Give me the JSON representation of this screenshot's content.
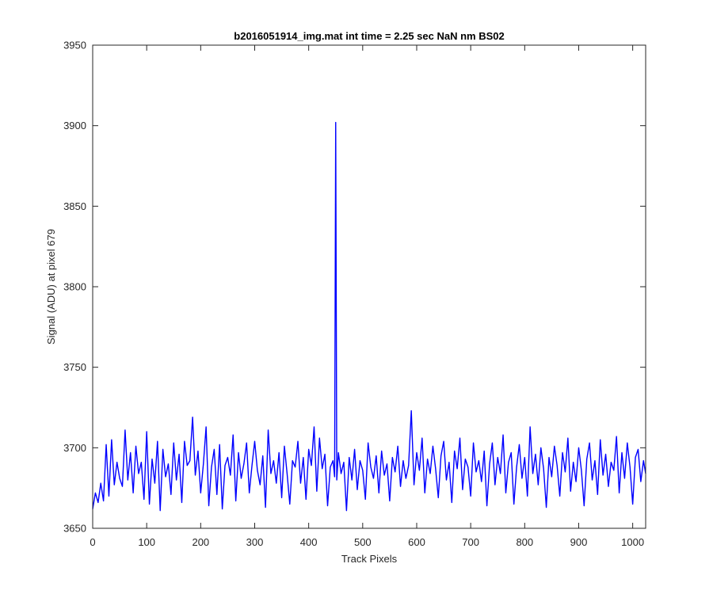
{
  "chart_data": {
    "type": "line",
    "title": "b2016051914_img.mat int time = 2.25 sec  NaN nm BS02",
    "xlabel": "Track Pixels",
    "ylabel": "Signal (ADU) at pixel 679",
    "xlim": [
      0,
      1024
    ],
    "ylim": [
      3650,
      3950
    ],
    "xticks": [
      0,
      100,
      200,
      300,
      400,
      500,
      600,
      700,
      800,
      900,
      1000
    ],
    "yticks": [
      3650,
      3700,
      3750,
      3800,
      3850,
      3900,
      3950
    ],
    "grid": false,
    "legend": "none",
    "series": [
      {
        "color": "#0000ff",
        "x": [
          0,
          5,
          10,
          15,
          20,
          25,
          30,
          35,
          40,
          45,
          50,
          55,
          60,
          65,
          70,
          75,
          80,
          85,
          90,
          95,
          100,
          105,
          110,
          115,
          120,
          125,
          130,
          135,
          140,
          145,
          150,
          155,
          160,
          165,
          170,
          175,
          180,
          185,
          190,
          195,
          200,
          205,
          210,
          215,
          220,
          225,
          230,
          235,
          240,
          245,
          250,
          255,
          260,
          265,
          270,
          275,
          280,
          285,
          290,
          295,
          300,
          305,
          310,
          315,
          320,
          325,
          330,
          335,
          340,
          345,
          350,
          355,
          360,
          365,
          370,
          375,
          380,
          385,
          390,
          395,
          400,
          405,
          410,
          415,
          420,
          425,
          430,
          435,
          440,
          445,
          448,
          450,
          452,
          455,
          460,
          465,
          470,
          475,
          480,
          485,
          490,
          495,
          500,
          505,
          510,
          515,
          520,
          525,
          530,
          535,
          540,
          545,
          550,
          555,
          560,
          565,
          570,
          575,
          580,
          585,
          590,
          595,
          600,
          605,
          610,
          615,
          620,
          625,
          630,
          635,
          640,
          645,
          650,
          655,
          660,
          665,
          670,
          675,
          680,
          685,
          690,
          695,
          700,
          705,
          710,
          715,
          720,
          725,
          730,
          735,
          740,
          745,
          750,
          755,
          760,
          765,
          770,
          775,
          780,
          785,
          790,
          795,
          800,
          805,
          810,
          815,
          820,
          825,
          830,
          835,
          840,
          845,
          850,
          855,
          860,
          865,
          870,
          875,
          880,
          885,
          890,
          895,
          900,
          905,
          910,
          915,
          920,
          925,
          930,
          935,
          940,
          945,
          950,
          955,
          960,
          965,
          970,
          975,
          980,
          985,
          990,
          995,
          1000,
          1005,
          1010,
          1015,
          1020,
          1024
        ],
        "y": [
          3662,
          3672,
          3666,
          3678,
          3667,
          3702,
          3670,
          3705,
          3677,
          3691,
          3681,
          3676,
          3711,
          3680,
          3697,
          3672,
          3701,
          3684,
          3691,
          3668,
          3710,
          3665,
          3693,
          3678,
          3704,
          3661,
          3699,
          3682,
          3690,
          3671,
          3703,
          3680,
          3696,
          3666,
          3704,
          3689,
          3692,
          3719,
          3683,
          3698,
          3672,
          3690,
          3713,
          3664,
          3688,
          3699,
          3671,
          3702,
          3662,
          3689,
          3694,
          3683,
          3708,
          3667,
          3697,
          3681,
          3690,
          3703,
          3672,
          3689,
          3704,
          3686,
          3677,
          3695,
          3663,
          3711,
          3684,
          3692,
          3678,
          3697,
          3669,
          3701,
          3684,
          3665,
          3692,
          3688,
          3704,
          3678,
          3694,
          3668,
          3699,
          3689,
          3713,
          3673,
          3706,
          3687,
          3696,
          3664,
          3688,
          3692,
          3682,
          3902,
          3680,
          3697,
          3684,
          3691,
          3661,
          3694,
          3680,
          3699,
          3674,
          3692,
          3686,
          3668,
          3703,
          3688,
          3681,
          3695,
          3672,
          3698,
          3683,
          3690,
          3667,
          3694,
          3685,
          3701,
          3676,
          3692,
          3681,
          3689,
          3723,
          3677,
          3697,
          3686,
          3706,
          3672,
          3693,
          3684,
          3701,
          3687,
          3669,
          3695,
          3704,
          3680,
          3691,
          3666,
          3698,
          3687,
          3706,
          3674,
          3693,
          3688,
          3670,
          3703,
          3685,
          3692,
          3679,
          3698,
          3664,
          3690,
          3703,
          3677,
          3694,
          3684,
          3708,
          3672,
          3691,
          3697,
          3665,
          3688,
          3702,
          3681,
          3694,
          3670,
          3713,
          3684,
          3696,
          3677,
          3700,
          3687,
          3663,
          3694,
          3682,
          3701,
          3689,
          3670,
          3697,
          3685,
          3706,
          3673,
          3691,
          3679,
          3700,
          3686,
          3664,
          3693,
          3703,
          3680,
          3692,
          3671,
          3705,
          3683,
          3696,
          3676,
          3691,
          3686,
          3707,
          3672,
          3697,
          3681,
          3703,
          3688,
          3665,
          3694,
          3699,
          3679,
          3692,
          3684
        ]
      }
    ]
  }
}
